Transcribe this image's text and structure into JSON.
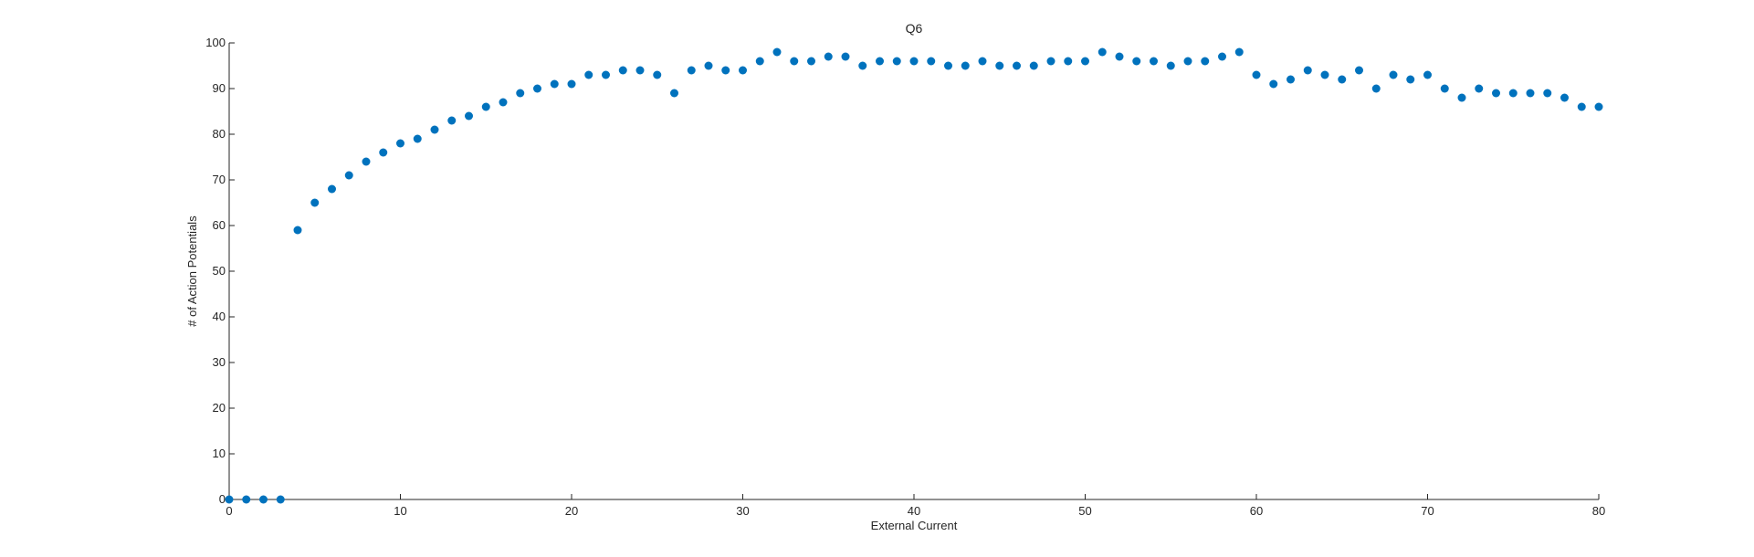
{
  "chart_data": {
    "type": "scatter",
    "title": "Q6",
    "xlabel": "External Current",
    "ylabel": "# of Action Potentials",
    "xlim": [
      0,
      80
    ],
    "ylim": [
      0,
      100
    ],
    "xticks": [
      "0",
      "10",
      "20",
      "30",
      "40",
      "50",
      "60",
      "70",
      "80"
    ],
    "yticks": [
      "0",
      "10",
      "20",
      "30",
      "40",
      "50",
      "60",
      "70",
      "80",
      "90",
      "100"
    ],
    "grid": false,
    "legend": "none",
    "marker_color": "#0072BD",
    "series": [
      {
        "x": [
          0,
          1,
          2,
          3,
          4,
          5,
          6,
          7,
          8,
          9,
          10,
          11,
          12,
          13,
          14,
          15,
          16,
          17,
          18,
          19,
          20,
          21,
          22,
          23,
          24,
          25,
          26,
          27,
          28,
          29,
          30,
          31,
          32,
          33,
          34,
          35,
          36,
          37,
          38,
          39,
          40,
          41,
          42,
          43,
          44,
          45,
          46,
          47,
          48,
          49,
          50,
          51,
          52,
          53,
          54,
          55,
          56,
          57,
          58,
          59,
          60,
          61,
          62,
          63,
          64,
          65,
          66,
          67,
          68,
          69,
          70,
          71,
          72,
          73,
          74,
          75,
          76,
          77,
          78,
          79,
          80
        ],
        "y": [
          0,
          0,
          0,
          0,
          59,
          65,
          68,
          71,
          74,
          76,
          78,
          79,
          81,
          83,
          84,
          86,
          87,
          89,
          90,
          91,
          91,
          93,
          93,
          94,
          94,
          93,
          89,
          94,
          95,
          94,
          94,
          96,
          98,
          96,
          96,
          97,
          97,
          95,
          96,
          96,
          96,
          96,
          95,
          95,
          96,
          95,
          95,
          95,
          96,
          96,
          96,
          98,
          97,
          96,
          96,
          95,
          96,
          96,
          97,
          98,
          93,
          91,
          92,
          94,
          93,
          92,
          94,
          90,
          93,
          92,
          93,
          90,
          88,
          90,
          89,
          89,
          89,
          89,
          88,
          86,
          86
        ]
      }
    ]
  }
}
